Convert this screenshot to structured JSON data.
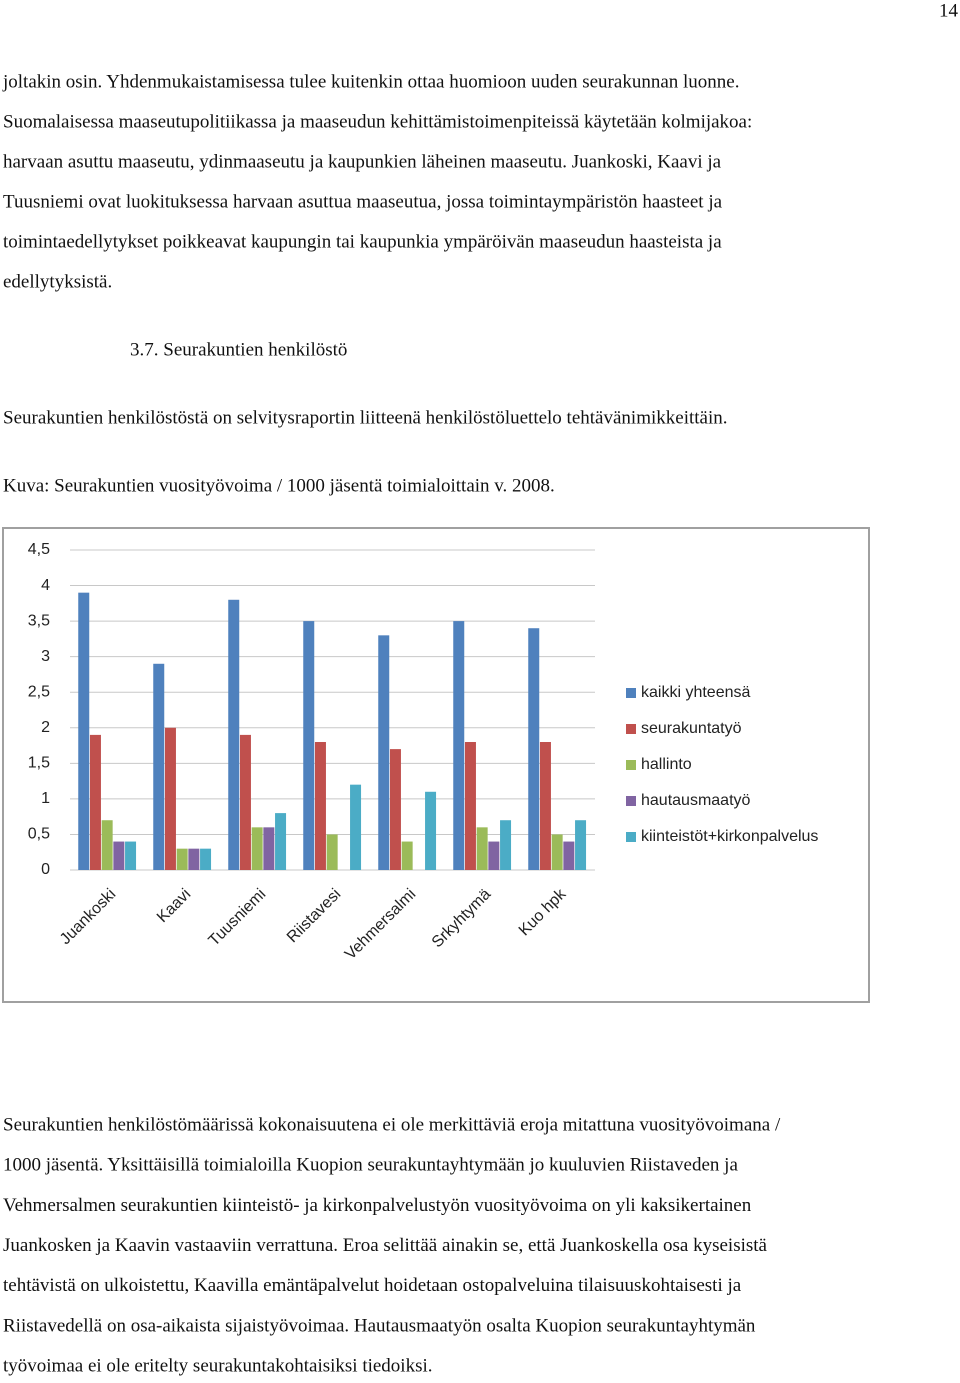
{
  "page_number": "14",
  "paragraph_1": {
    "lines": [
      "joltakin osin. Yhdenmukaistamisessa tulee kuitenkin ottaa huomioon uuden seurakunnan luonne.",
      "Suomalaisessa maaseutupolitiikassa ja maaseudun kehittämistoimenpiteissä käytetään kolmijakoa:",
      "harvaan asuttu maaseutu, ydinmaaseutu ja kaupunkien läheinen maaseutu. Juankoski, Kaavi ja",
      "Tuusniemi ovat luokituksessa harvaan asuttua maaseutua, jossa toimintaympäristön haasteet ja",
      "toimintaedellytykset poikkeavat kaupungin tai kaupunkia ympäröivän maaseudun haasteista ja",
      "edellytyksistä."
    ]
  },
  "heading": "3.7. Seurakuntien henkilöstö",
  "paragraph_2": "Seurakuntien henkilöstöstä on selvitysraportin liitteenä henkilöstöluettelo tehtävänimikkeittäin.",
  "figure_caption": "Kuva: Seurakuntien vuosityövoima / 1000 jäsentä toimialoittain v. 2008.",
  "chart_data": {
    "type": "bar",
    "categories": [
      "Juankoski",
      "Kaavi",
      "Tuusniemi",
      "Riistavesi",
      "Vehmersalmi",
      "Srkyhtymä",
      "Kuo hpk"
    ],
    "series": [
      {
        "name": "kaikki yhteensä",
        "color": "#4f81bd",
        "values": [
          3.9,
          2.9,
          3.8,
          3.5,
          3.3,
          3.5,
          3.4
        ]
      },
      {
        "name": "seurakuntatyö",
        "color": "#c0504d",
        "values": [
          1.9,
          2.0,
          1.9,
          1.8,
          1.7,
          1.8,
          1.8
        ]
      },
      {
        "name": "hallinto",
        "color": "#9bbb59",
        "values": [
          0.7,
          0.3,
          0.6,
          0.5,
          0.4,
          0.6,
          0.5
        ]
      },
      {
        "name": "hautausmaatyö",
        "color": "#8064a2",
        "values": [
          0.4,
          0.3,
          0.6,
          null,
          null,
          0.4,
          0.4
        ]
      },
      {
        "name": "kiinteistöt+kirkonpalvelus",
        "color": "#4bacc6",
        "values": [
          0.4,
          0.3,
          0.8,
          1.2,
          1.1,
          0.7,
          0.7
        ]
      }
    ],
    "ylim": [
      0,
      4.5
    ],
    "yticks": [
      0,
      {
        "value": 0.5,
        "label": "0,5"
      },
      1,
      {
        "value": 1.5,
        "label": "1,5"
      },
      2,
      {
        "value": 2.5,
        "label": "2,5"
      },
      3,
      {
        "value": 3.5,
        "label": "3,5"
      },
      4,
      {
        "value": 4.5,
        "label": "4,5"
      }
    ],
    "grid": true,
    "legend": "right"
  },
  "paragraph_3": {
    "lines": [
      "Seurakuntien henkilöstömäärissä kokonaisuutena ei ole merkittäviä eroja mitattuna vuosityövoimana /",
      "1000 jäsentä. Yksittäisillä toimialoilla Kuopion seurakuntayhtymään jo kuuluvien Riistaveden ja",
      "Vehmersalmen seurakuntien kiinteistö- ja kirkonpalvelustyön vuosityövoima on yli kaksikertainen",
      "Juankosken ja Kaavin vastaaviin verrattuna. Eroa selittää ainakin se, että Juankoskella osa kyseisistä",
      "tehtävistä on ulkoistettu, Kaavilla emäntäpalvelut hoidetaan ostopalveluina tilaisuuskohtaisesti ja",
      "Riistavedellä on osa-aikaista sijaistyövoimaa. Hautausmaatyön osalta Kuopion seurakuntayhtymän",
      "työvoimaa ei ole eritelty seurakuntakohtaisiksi tiedoiksi."
    ]
  }
}
